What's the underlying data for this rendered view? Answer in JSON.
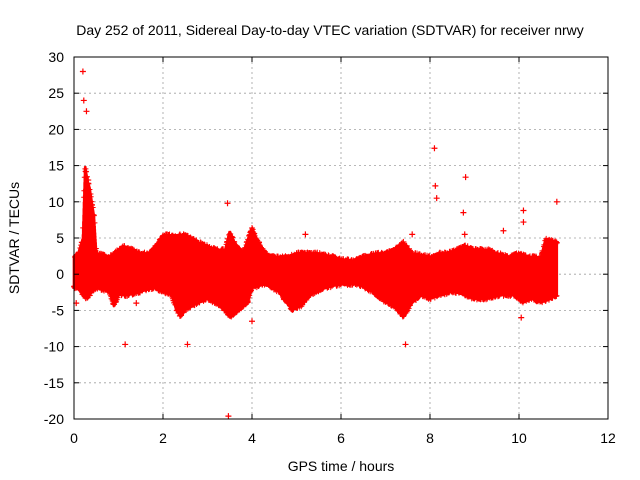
{
  "chart_data": {
    "type": "scatter",
    "title": "Day 252 of 2011, Sidereal Day-to-day VTEC variation (SDTVAR) for receiver nrwy",
    "xlabel": "GPS time / hours",
    "ylabel": "SDTVAR / TECUs",
    "xlim": [
      0,
      12
    ],
    "ylim": [
      -20,
      30
    ],
    "xticks": [
      0,
      2,
      4,
      6,
      8,
      10,
      12
    ],
    "yticks": [
      -20,
      -15,
      -10,
      -5,
      0,
      5,
      10,
      15,
      20,
      25,
      30
    ],
    "grid": true,
    "marker": "+",
    "series_color": "#ff0000",
    "series": [
      {
        "name": "SDTVAR",
        "envelope_upper": [
          [
            0.0,
            2.5
          ],
          [
            0.1,
            3
          ],
          [
            0.2,
            5
          ],
          [
            0.25,
            15
          ],
          [
            0.3,
            13
          ],
          [
            0.35,
            12
          ],
          [
            0.4,
            10
          ],
          [
            0.45,
            8
          ],
          [
            0.5,
            3
          ],
          [
            0.8,
            2.5
          ],
          [
            1.0,
            3.5
          ],
          [
            1.1,
            4
          ],
          [
            1.3,
            3.5
          ],
          [
            1.5,
            3
          ],
          [
            1.7,
            3
          ],
          [
            1.9,
            4.5
          ],
          [
            2.0,
            5.5
          ],
          [
            2.3,
            5.5
          ],
          [
            2.5,
            5.5
          ],
          [
            2.8,
            4.5
          ],
          [
            3.0,
            4
          ],
          [
            3.2,
            3.5
          ],
          [
            3.4,
            3.5
          ],
          [
            3.5,
            6
          ],
          [
            3.6,
            4.5
          ],
          [
            3.8,
            3
          ],
          [
            4.0,
            6.5
          ],
          [
            4.1,
            5
          ],
          [
            4.3,
            3
          ],
          [
            4.5,
            2.5
          ],
          [
            4.8,
            2.5
          ],
          [
            5.0,
            3
          ],
          [
            5.5,
            3
          ],
          [
            6.0,
            2.2
          ],
          [
            6.3,
            2
          ],
          [
            6.5,
            2.5
          ],
          [
            6.8,
            3
          ],
          [
            7.0,
            3
          ],
          [
            7.2,
            3.5
          ],
          [
            7.4,
            4.5
          ],
          [
            7.6,
            3
          ],
          [
            8.0,
            2.5
          ],
          [
            8.2,
            3
          ],
          [
            8.4,
            3
          ],
          [
            8.6,
            3.5
          ],
          [
            8.8,
            4
          ],
          [
            9.0,
            3.5
          ],
          [
            9.3,
            3.5
          ],
          [
            9.5,
            3
          ],
          [
            9.8,
            2.5
          ],
          [
            10.0,
            3
          ],
          [
            10.2,
            2.5
          ],
          [
            10.5,
            2.5
          ],
          [
            10.6,
            5
          ],
          [
            10.85,
            4.5
          ]
        ],
        "envelope_lower": [
          [
            0.0,
            -2
          ],
          [
            0.1,
            -2
          ],
          [
            0.2,
            -3
          ],
          [
            0.3,
            -3.5
          ],
          [
            0.4,
            -2.5
          ],
          [
            0.5,
            -2
          ],
          [
            0.8,
            -2.5
          ],
          [
            0.9,
            -4.5
          ],
          [
            1.0,
            -3
          ],
          [
            1.2,
            -3
          ],
          [
            1.5,
            -2.5
          ],
          [
            1.8,
            -2
          ],
          [
            2.0,
            -2.5
          ],
          [
            2.2,
            -3
          ],
          [
            2.3,
            -5
          ],
          [
            2.4,
            -6
          ],
          [
            2.5,
            -5
          ],
          [
            2.8,
            -4
          ],
          [
            3.0,
            -3.5
          ],
          [
            3.3,
            -4.5
          ],
          [
            3.5,
            -6
          ],
          [
            3.7,
            -5
          ],
          [
            3.9,
            -4
          ],
          [
            4.0,
            -2
          ],
          [
            4.3,
            -1.5
          ],
          [
            4.6,
            -2.5
          ],
          [
            4.9,
            -5
          ],
          [
            5.1,
            -4.5
          ],
          [
            5.3,
            -3
          ],
          [
            5.6,
            -2
          ],
          [
            6.0,
            -1.5
          ],
          [
            6.4,
            -1.5
          ],
          [
            6.7,
            -2.5
          ],
          [
            7.0,
            -4
          ],
          [
            7.2,
            -4.5
          ],
          [
            7.4,
            -6
          ],
          [
            7.6,
            -4
          ],
          [
            7.8,
            -3
          ],
          [
            8.0,
            -3.5
          ],
          [
            8.2,
            -3
          ],
          [
            8.5,
            -2.5
          ],
          [
            8.8,
            -3
          ],
          [
            9.0,
            -3.5
          ],
          [
            9.3,
            -3.5
          ],
          [
            9.6,
            -3
          ],
          [
            9.9,
            -3
          ],
          [
            10.1,
            -4
          ],
          [
            10.3,
            -3.5
          ],
          [
            10.5,
            -4
          ],
          [
            10.7,
            -3.5
          ],
          [
            10.85,
            -3
          ]
        ],
        "outliers": [
          [
            0.2,
            28
          ],
          [
            0.22,
            24
          ],
          [
            0.28,
            22.5
          ],
          [
            0.32,
            13
          ],
          [
            1.15,
            -9.7
          ],
          [
            2.55,
            -9.7
          ],
          [
            3.45,
            9.8
          ],
          [
            3.47,
            -19.6
          ],
          [
            4.0,
            -6.5
          ],
          [
            7.45,
            -9.7
          ],
          [
            7.6,
            5.5
          ],
          [
            8.1,
            17.4
          ],
          [
            8.12,
            12.2
          ],
          [
            8.15,
            10.5
          ],
          [
            8.8,
            13.4
          ],
          [
            8.75,
            8.5
          ],
          [
            8.78,
            5.5
          ],
          [
            10.1,
            8.8
          ],
          [
            10.1,
            7.2
          ],
          [
            10.85,
            10
          ],
          [
            0.05,
            -4
          ],
          [
            1.4,
            -4
          ],
          [
            5.2,
            5.5
          ],
          [
            9.65,
            6
          ],
          [
            10.05,
            -6
          ]
        ]
      }
    ]
  }
}
